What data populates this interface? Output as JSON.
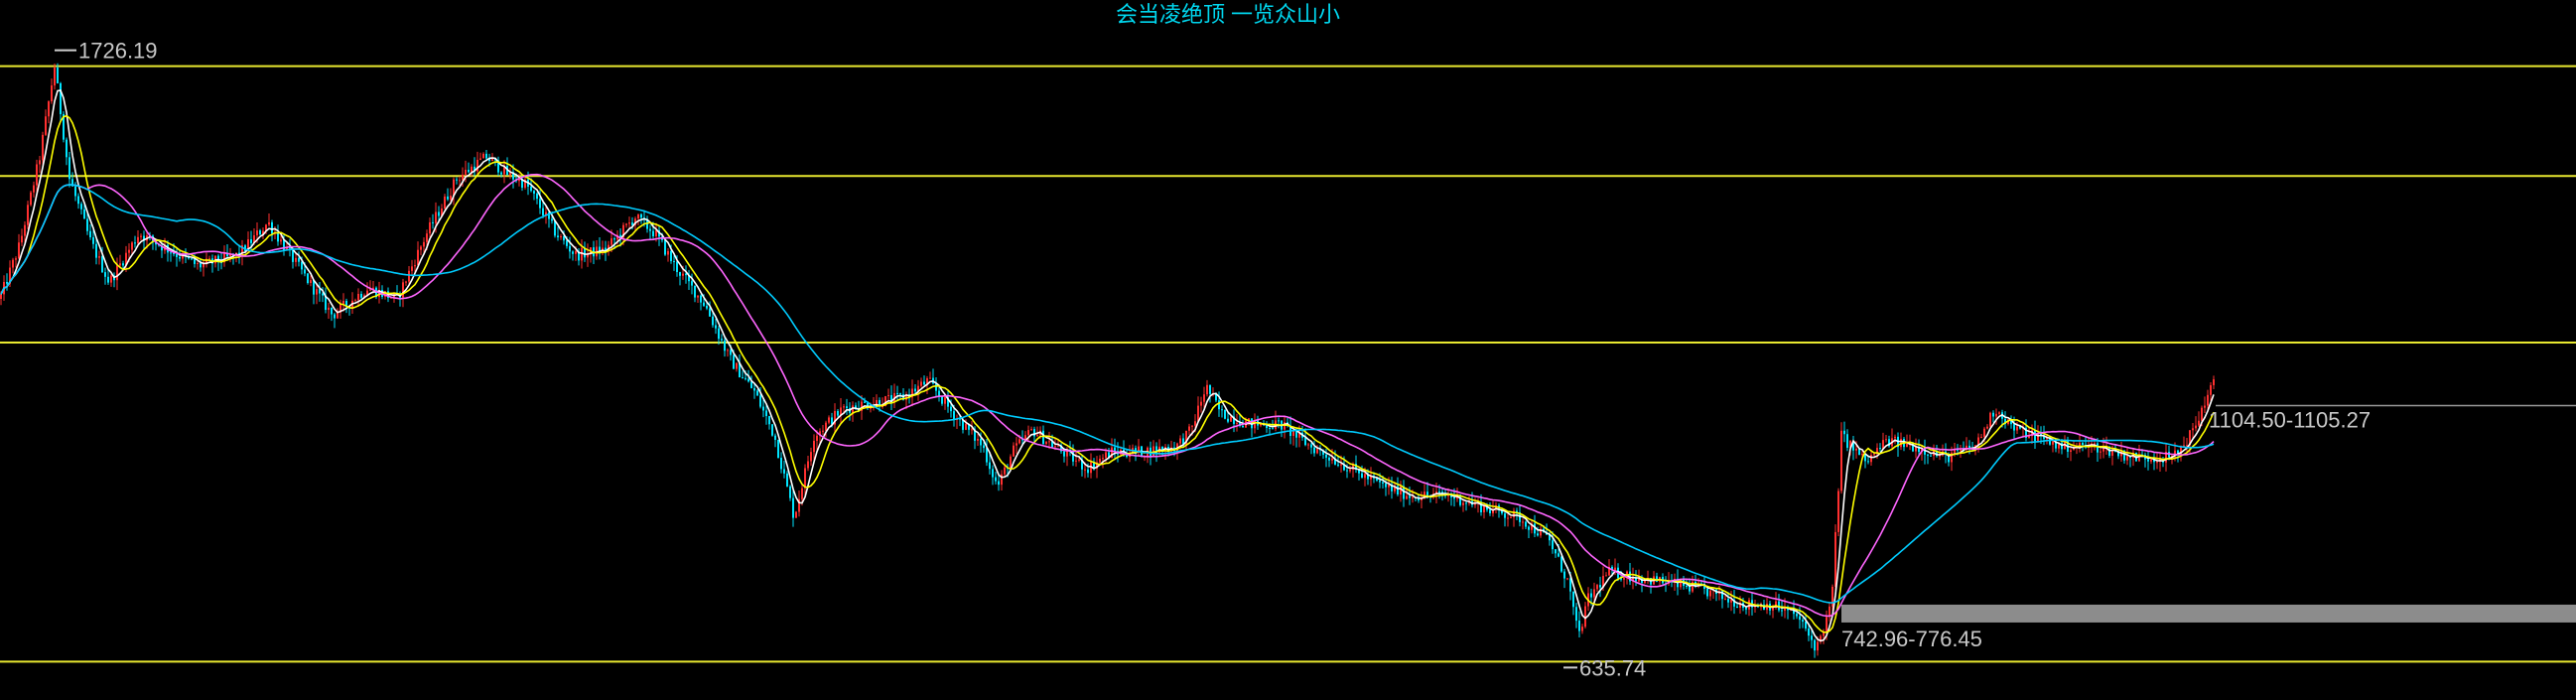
{
  "chart_data": {
    "type": "candlestick",
    "title": "会当凌绝顶 一览众山小",
    "ylim": [
      620,
      1760
    ],
    "annotations": {
      "high_label": "1726.19",
      "low_label": "635.74",
      "price_range_label": "1104.50-1105.27",
      "support_range_label": "742.96-776.45"
    },
    "horizontal_levels": [
      1726.19,
      1525,
      1220,
      635.74
    ],
    "price_zone": [
      1104.5,
      1105.27
    ],
    "support_zone": [
      742.96,
      776.45
    ],
    "series_colors": {
      "up": "#ff3030",
      "down": "#00e5ff",
      "ma_fast": "#ffffff",
      "ma_mid": "#ffff00",
      "ma_slow": "#ff66ff",
      "ma_long": "#00ccff",
      "level_line": "#e8e830",
      "zone_fill": "#8c8c8c"
    },
    "trend_anchors": [
      [
        0,
        1300
      ],
      [
        20,
        1400
      ],
      [
        40,
        1560
      ],
      [
        55,
        1726.19
      ],
      [
        70,
        1520
      ],
      [
        90,
        1410
      ],
      [
        110,
        1330
      ],
      [
        140,
        1420
      ],
      [
        170,
        1390
      ],
      [
        200,
        1360
      ],
      [
        240,
        1380
      ],
      [
        270,
        1440
      ],
      [
        300,
        1360
      ],
      [
        335,
        1270
      ],
      [
        370,
        1320
      ],
      [
        400,
        1300
      ],
      [
        430,
        1420
      ],
      [
        460,
        1520
      ],
      [
        490,
        1560
      ],
      [
        510,
        1530
      ],
      [
        530,
        1510
      ],
      [
        560,
        1420
      ],
      [
        580,
        1380
      ],
      [
        610,
        1390
      ],
      [
        640,
        1450
      ],
      [
        660,
        1420
      ],
      [
        680,
        1360
      ],
      [
        710,
        1290
      ],
      [
        735,
        1190
      ],
      [
        760,
        1130
      ],
      [
        780,
        1050
      ],
      [
        800,
        900
      ],
      [
        820,
        1050
      ],
      [
        850,
        1100
      ],
      [
        880,
        1110
      ],
      [
        910,
        1120
      ],
      [
        935,
        1150
      ],
      [
        960,
        1090
      ],
      [
        990,
        1030
      ],
      [
        1005,
        955
      ],
      [
        1020,
        1020
      ],
      [
        1040,
        1060
      ],
      [
        1070,
        1020
      ],
      [
        1095,
        990
      ],
      [
        1120,
        1020
      ],
      [
        1150,
        1020
      ],
      [
        1185,
        1030
      ],
      [
        1200,
        1060
      ],
      [
        1215,
        1140
      ],
      [
        1230,
        1090
      ],
      [
        1260,
        1070
      ],
      [
        1290,
        1070
      ],
      [
        1320,
        1030
      ],
      [
        1360,
        990
      ],
      [
        1390,
        960
      ],
      [
        1420,
        940
      ],
      [
        1460,
        940
      ],
      [
        1500,
        915
      ],
      [
        1530,
        900
      ],
      [
        1560,
        860
      ],
      [
        1580,
        780
      ],
      [
        1590,
        680
      ],
      [
        1600,
        750
      ],
      [
        1620,
        800
      ],
      [
        1650,
        790
      ],
      [
        1680,
        780
      ],
      [
        1710,
        770
      ],
      [
        1740,
        750
      ],
      [
        1760,
        740
      ],
      [
        1785,
        740
      ],
      [
        1810,
        720
      ],
      [
        1830,
        660
      ],
      [
        1845,
        740
      ],
      [
        1855,
        1050
      ],
      [
        1880,
        1000
      ],
      [
        1900,
        1040
      ],
      [
        1930,
        1030
      ],
      [
        1960,
        1010
      ],
      [
        1990,
        1030
      ],
      [
        2010,
        1100
      ],
      [
        2030,
        1060
      ],
      [
        2050,
        1050
      ],
      [
        2075,
        1030
      ],
      [
        2110,
        1030
      ],
      [
        2150,
        1010
      ],
      [
        2190,
        1010
      ],
      [
        2210,
        1060
      ],
      [
        2225,
        1130
      ],
      [
        2232,
        1150
      ]
    ]
  }
}
